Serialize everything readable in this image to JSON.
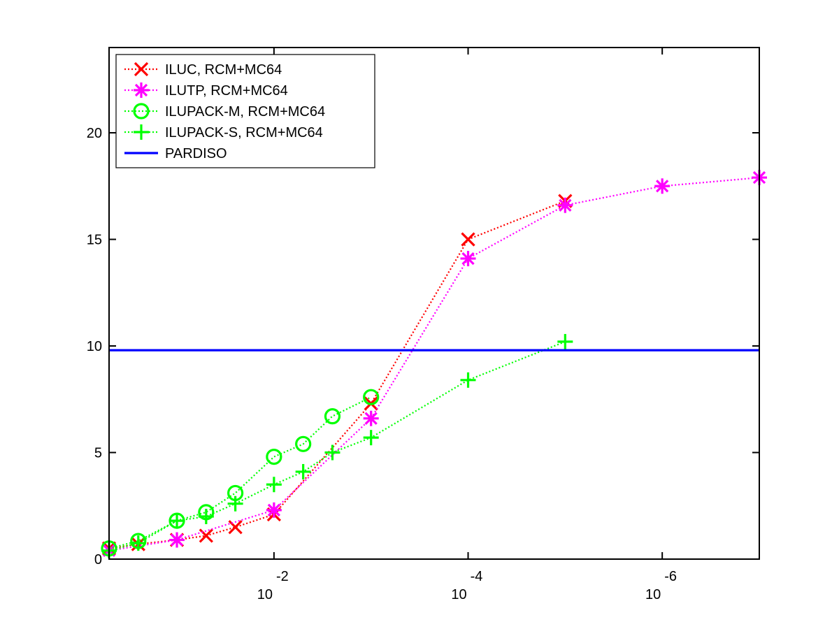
{
  "chart_data": {
    "type": "line",
    "title": "",
    "xlabel": "",
    "ylabel": "",
    "x_scale": "log-reversed",
    "xlim": [
      0.5,
      1e-07
    ],
    "ylim": [
      0,
      24
    ],
    "yticks": [
      0,
      5,
      10,
      15,
      20
    ],
    "xticks": [
      {
        "value": 0.01,
        "base": "10",
        "exp": "-2"
      },
      {
        "value": 0.0001,
        "base": "10",
        "exp": "-4"
      },
      {
        "value": 1e-06,
        "base": "10",
        "exp": "-6"
      }
    ],
    "legend_position": "top-left",
    "series": [
      {
        "name": "ILUC, RCM+MC64",
        "color": "#ff0000",
        "marker": "x",
        "line": "dotted",
        "x": [
          0.5,
          0.25,
          0.1,
          0.05,
          0.025,
          0.01,
          0.001,
          0.0001,
          1e-05
        ],
        "y": [
          0.5,
          0.7,
          0.9,
          1.1,
          1.5,
          2.1,
          7.3,
          15.0,
          16.8
        ]
      },
      {
        "name": "ILUTP, RCM+MC64",
        "color": "#ff00ff",
        "marker": "asterisk",
        "line": "dotted",
        "x": [
          0.5,
          0.1,
          0.01,
          0.001,
          0.0001,
          1e-05,
          1e-06,
          1e-07
        ],
        "y": [
          0.4,
          0.9,
          2.3,
          6.6,
          14.1,
          16.6,
          17.5,
          17.9
        ]
      },
      {
        "name": "ILUPACK-M, RCM+MC64",
        "color": "#00ff00",
        "marker": "circle",
        "line": "dotted",
        "x": [
          0.5,
          0.25,
          0.1,
          0.05,
          0.025,
          0.01,
          0.005,
          0.0025,
          0.001
        ],
        "y": [
          0.5,
          0.85,
          1.8,
          2.2,
          3.1,
          4.8,
          5.4,
          6.7,
          7.6
        ]
      },
      {
        "name": "ILUPACK-S, RCM+MC64",
        "color": "#00ff00",
        "marker": "plus",
        "line": "dotted",
        "x": [
          0.5,
          0.25,
          0.1,
          0.05,
          0.025,
          0.01,
          0.005,
          0.0025,
          0.001,
          0.0001,
          1e-05
        ],
        "y": [
          0.4,
          0.75,
          1.8,
          2.0,
          2.6,
          3.5,
          4.1,
          5.0,
          5.7,
          8.4,
          10.2
        ]
      },
      {
        "name": "PARDISO",
        "color": "#0000ff",
        "marker": "none",
        "line": "solid",
        "x": [
          0.5,
          1e-07
        ],
        "y": [
          9.8,
          9.8
        ]
      }
    ]
  }
}
